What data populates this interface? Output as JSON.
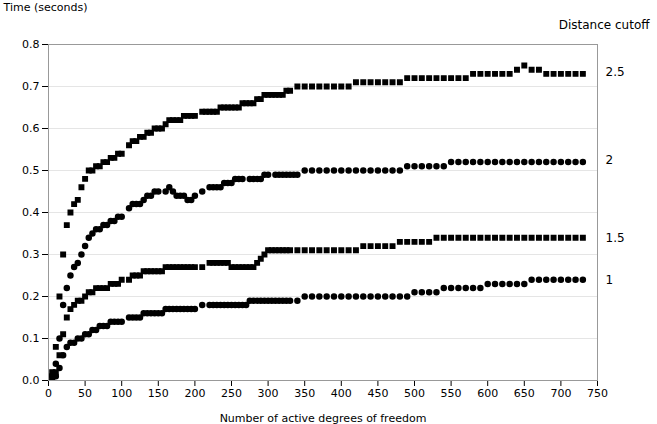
{
  "chart_data": {
    "type": "scatter",
    "xlabel": "Number of active degrees of freedom",
    "ylabel": "Time (seconds)",
    "xlim": [
      0,
      750
    ],
    "ylim": [
      0,
      0.8
    ],
    "xticks": [
      0,
      50,
      100,
      150,
      200,
      250,
      300,
      350,
      400,
      450,
      500,
      550,
      600,
      650,
      700,
      750
    ],
    "yticks": [
      0,
      0.1,
      0.2,
      0.3,
      0.4,
      0.5,
      0.6,
      0.7,
      0.8
    ],
    "grid": "y",
    "annotations": [
      {
        "text": "Distance cutoff"
      },
      {
        "text": "2.5",
        "y": 0.735
      },
      {
        "text": "2",
        "y": 0.525
      },
      {
        "text": "1.5",
        "y": 0.34
      },
      {
        "text": "1",
        "y": 0.24
      }
    ],
    "series": [
      {
        "name": "2.5",
        "marker": "square",
        "color": "black",
        "x": [
          5,
          10,
          15,
          20,
          25,
          30,
          35,
          40,
          45,
          50,
          55,
          60,
          65,
          70,
          75,
          80,
          85,
          90,
          95,
          100,
          110,
          115,
          120,
          125,
          130,
          135,
          140,
          145,
          150,
          155,
          160,
          165,
          170,
          175,
          180,
          185,
          190,
          195,
          200,
          210,
          215,
          220,
          225,
          230,
          235,
          240,
          245,
          250,
          255,
          260,
          265,
          270,
          275,
          280,
          285,
          290,
          295,
          300,
          305,
          310,
          315,
          320,
          325,
          330,
          340,
          350,
          360,
          370,
          380,
          390,
          400,
          410,
          420,
          430,
          440,
          450,
          460,
          470,
          480,
          490,
          500,
          510,
          520,
          530,
          540,
          550,
          560,
          570,
          580,
          590,
          600,
          610,
          620,
          630,
          640,
          650,
          660,
          670,
          680,
          690,
          700,
          710,
          720,
          730
        ],
        "values": [
          0.02,
          0.08,
          0.2,
          0.3,
          0.37,
          0.4,
          0.42,
          0.43,
          0.46,
          0.48,
          0.5,
          0.5,
          0.51,
          0.51,
          0.52,
          0.52,
          0.53,
          0.53,
          0.54,
          0.54,
          0.56,
          0.57,
          0.57,
          0.58,
          0.58,
          0.59,
          0.59,
          0.6,
          0.6,
          0.6,
          0.61,
          0.62,
          0.62,
          0.62,
          0.62,
          0.63,
          0.63,
          0.63,
          0.63,
          0.64,
          0.64,
          0.64,
          0.64,
          0.64,
          0.65,
          0.65,
          0.65,
          0.65,
          0.65,
          0.65,
          0.66,
          0.66,
          0.66,
          0.66,
          0.67,
          0.67,
          0.68,
          0.68,
          0.68,
          0.68,
          0.68,
          0.68,
          0.69,
          0.69,
          0.7,
          0.7,
          0.7,
          0.7,
          0.7,
          0.7,
          0.7,
          0.7,
          0.71,
          0.71,
          0.71,
          0.71,
          0.71,
          0.71,
          0.71,
          0.72,
          0.72,
          0.72,
          0.72,
          0.72,
          0.72,
          0.72,
          0.72,
          0.72,
          0.73,
          0.73,
          0.73,
          0.73,
          0.73,
          0.73,
          0.74,
          0.75,
          0.74,
          0.74,
          0.73,
          0.73,
          0.73,
          0.73,
          0.73,
          0.73
        ]
      },
      {
        "name": "2",
        "marker": "circle",
        "color": "black",
        "x": [
          5,
          10,
          15,
          20,
          25,
          30,
          35,
          40,
          45,
          50,
          55,
          60,
          65,
          70,
          75,
          80,
          85,
          90,
          95,
          100,
          110,
          115,
          120,
          125,
          130,
          135,
          140,
          145,
          150,
          160,
          165,
          170,
          175,
          180,
          185,
          190,
          195,
          200,
          210,
          220,
          225,
          230,
          235,
          240,
          245,
          250,
          255,
          260,
          265,
          275,
          280,
          285,
          290,
          295,
          300,
          310,
          315,
          320,
          325,
          330,
          335,
          340,
          350,
          360,
          370,
          380,
          390,
          400,
          410,
          420,
          430,
          440,
          450,
          460,
          470,
          480,
          490,
          500,
          510,
          520,
          530,
          540,
          550,
          560,
          570,
          580,
          590,
          600,
          610,
          620,
          630,
          640,
          650,
          660,
          670,
          680,
          690,
          700,
          710,
          720,
          730
        ],
        "values": [
          0.01,
          0.04,
          0.1,
          0.18,
          0.22,
          0.25,
          0.27,
          0.28,
          0.3,
          0.32,
          0.34,
          0.35,
          0.36,
          0.36,
          0.37,
          0.37,
          0.38,
          0.38,
          0.39,
          0.39,
          0.41,
          0.42,
          0.42,
          0.42,
          0.43,
          0.44,
          0.44,
          0.45,
          0.45,
          0.45,
          0.46,
          0.45,
          0.44,
          0.44,
          0.44,
          0.43,
          0.43,
          0.44,
          0.45,
          0.46,
          0.46,
          0.46,
          0.46,
          0.47,
          0.47,
          0.47,
          0.48,
          0.48,
          0.48,
          0.48,
          0.48,
          0.48,
          0.48,
          0.49,
          0.49,
          0.49,
          0.49,
          0.49,
          0.49,
          0.49,
          0.49,
          0.49,
          0.5,
          0.5,
          0.5,
          0.5,
          0.5,
          0.5,
          0.5,
          0.5,
          0.5,
          0.5,
          0.5,
          0.5,
          0.5,
          0.5,
          0.51,
          0.51,
          0.51,
          0.51,
          0.51,
          0.51,
          0.52,
          0.52,
          0.52,
          0.52,
          0.52,
          0.52,
          0.52,
          0.52,
          0.52,
          0.52,
          0.52,
          0.52,
          0.52,
          0.52,
          0.52,
          0.52,
          0.52,
          0.52,
          0.52
        ]
      },
      {
        "name": "1.5",
        "marker": "square",
        "color": "black",
        "x": [
          5,
          10,
          15,
          20,
          25,
          30,
          35,
          40,
          45,
          50,
          55,
          60,
          65,
          70,
          75,
          80,
          85,
          90,
          95,
          100,
          110,
          115,
          120,
          125,
          130,
          135,
          140,
          145,
          150,
          155,
          160,
          165,
          170,
          175,
          180,
          185,
          190,
          195,
          200,
          210,
          220,
          225,
          230,
          235,
          240,
          245,
          250,
          255,
          260,
          265,
          270,
          275,
          280,
          285,
          290,
          295,
          300,
          305,
          310,
          315,
          320,
          325,
          330,
          340,
          350,
          360,
          370,
          380,
          390,
          400,
          410,
          420,
          430,
          440,
          450,
          460,
          470,
          480,
          490,
          500,
          510,
          520,
          530,
          540,
          550,
          560,
          570,
          580,
          590,
          600,
          610,
          620,
          630,
          640,
          650,
          660,
          670,
          680,
          690,
          700,
          710,
          720,
          730
        ],
        "values": [
          0.01,
          0.02,
          0.06,
          0.11,
          0.15,
          0.17,
          0.18,
          0.19,
          0.19,
          0.2,
          0.21,
          0.21,
          0.22,
          0.22,
          0.22,
          0.22,
          0.23,
          0.23,
          0.23,
          0.24,
          0.24,
          0.25,
          0.25,
          0.25,
          0.26,
          0.26,
          0.26,
          0.26,
          0.26,
          0.26,
          0.27,
          0.27,
          0.27,
          0.27,
          0.27,
          0.27,
          0.27,
          0.27,
          0.27,
          0.27,
          0.28,
          0.28,
          0.28,
          0.28,
          0.28,
          0.28,
          0.27,
          0.27,
          0.27,
          0.27,
          0.27,
          0.27,
          0.27,
          0.28,
          0.29,
          0.3,
          0.31,
          0.31,
          0.31,
          0.31,
          0.31,
          0.31,
          0.31,
          0.31,
          0.31,
          0.31,
          0.31,
          0.31,
          0.31,
          0.31,
          0.31,
          0.31,
          0.32,
          0.32,
          0.32,
          0.32,
          0.32,
          0.33,
          0.33,
          0.33,
          0.33,
          0.33,
          0.34,
          0.34,
          0.34,
          0.34,
          0.34,
          0.34,
          0.34,
          0.34,
          0.34,
          0.34,
          0.34,
          0.34,
          0.34,
          0.34,
          0.34,
          0.34,
          0.34,
          0.34,
          0.34,
          0.34,
          0.34
        ]
      },
      {
        "name": "1",
        "marker": "circle",
        "color": "black",
        "x": [
          5,
          10,
          15,
          20,
          25,
          30,
          35,
          40,
          45,
          50,
          55,
          60,
          65,
          70,
          75,
          80,
          85,
          90,
          95,
          100,
          110,
          115,
          120,
          125,
          130,
          135,
          140,
          145,
          150,
          155,
          160,
          165,
          170,
          175,
          180,
          185,
          190,
          195,
          200,
          210,
          220,
          225,
          230,
          235,
          240,
          245,
          250,
          255,
          260,
          265,
          270,
          275,
          280,
          285,
          290,
          295,
          300,
          305,
          310,
          315,
          320,
          325,
          330,
          340,
          350,
          360,
          370,
          380,
          390,
          400,
          410,
          420,
          430,
          440,
          450,
          460,
          470,
          480,
          490,
          500,
          510,
          520,
          530,
          540,
          550,
          560,
          570,
          580,
          590,
          600,
          610,
          620,
          630,
          640,
          650,
          660,
          670,
          680,
          690,
          700,
          710,
          720,
          730
        ],
        "values": [
          0.0,
          0.01,
          0.03,
          0.06,
          0.08,
          0.09,
          0.09,
          0.1,
          0.1,
          0.11,
          0.11,
          0.12,
          0.12,
          0.13,
          0.13,
          0.13,
          0.14,
          0.14,
          0.14,
          0.14,
          0.15,
          0.15,
          0.15,
          0.15,
          0.16,
          0.16,
          0.16,
          0.16,
          0.16,
          0.16,
          0.17,
          0.17,
          0.17,
          0.17,
          0.17,
          0.17,
          0.17,
          0.17,
          0.17,
          0.18,
          0.18,
          0.18,
          0.18,
          0.18,
          0.18,
          0.18,
          0.18,
          0.18,
          0.18,
          0.18,
          0.18,
          0.19,
          0.19,
          0.19,
          0.19,
          0.19,
          0.19,
          0.19,
          0.19,
          0.19,
          0.19,
          0.19,
          0.19,
          0.19,
          0.2,
          0.2,
          0.2,
          0.2,
          0.2,
          0.2,
          0.2,
          0.2,
          0.2,
          0.2,
          0.2,
          0.2,
          0.2,
          0.2,
          0.2,
          0.21,
          0.21,
          0.21,
          0.21,
          0.22,
          0.22,
          0.22,
          0.22,
          0.22,
          0.22,
          0.23,
          0.23,
          0.23,
          0.23,
          0.23,
          0.23,
          0.24,
          0.24,
          0.24,
          0.24,
          0.24,
          0.24,
          0.24,
          0.24
        ]
      }
    ]
  }
}
